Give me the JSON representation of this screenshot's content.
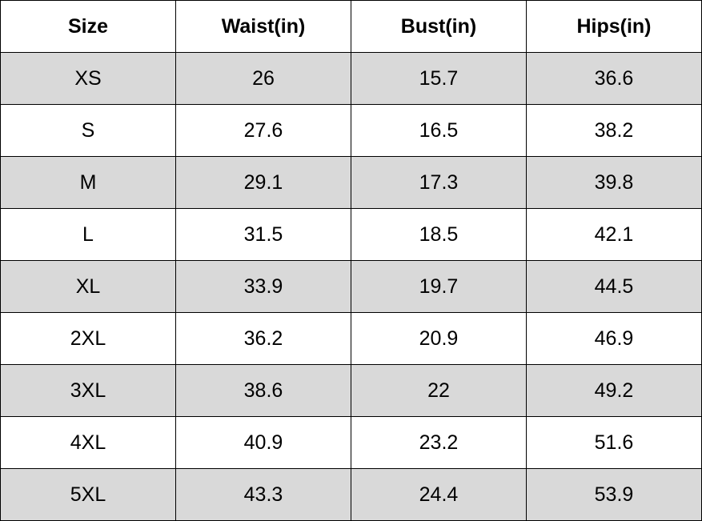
{
  "table": {
    "header": [
      "Size",
      "Waist(in)",
      "Bust(in)",
      "Hips(in)"
    ],
    "rows": [
      [
        "XS",
        "26",
        "15.7",
        "36.6"
      ],
      [
        "S",
        "27.6",
        "16.5",
        "38.2"
      ],
      [
        "M",
        "29.1",
        "17.3",
        "39.8"
      ],
      [
        "L",
        "31.5",
        "18.5",
        "42.1"
      ],
      [
        "XL",
        "33.9",
        "19.7",
        "44.5"
      ],
      [
        "2XL",
        "36.2",
        "20.9",
        "46.9"
      ],
      [
        "3XL",
        "38.6",
        "22",
        "49.2"
      ],
      [
        "4XL",
        "40.9",
        "23.2",
        "51.6"
      ],
      [
        "5XL",
        "43.3",
        "24.4",
        "53.9"
      ]
    ]
  }
}
